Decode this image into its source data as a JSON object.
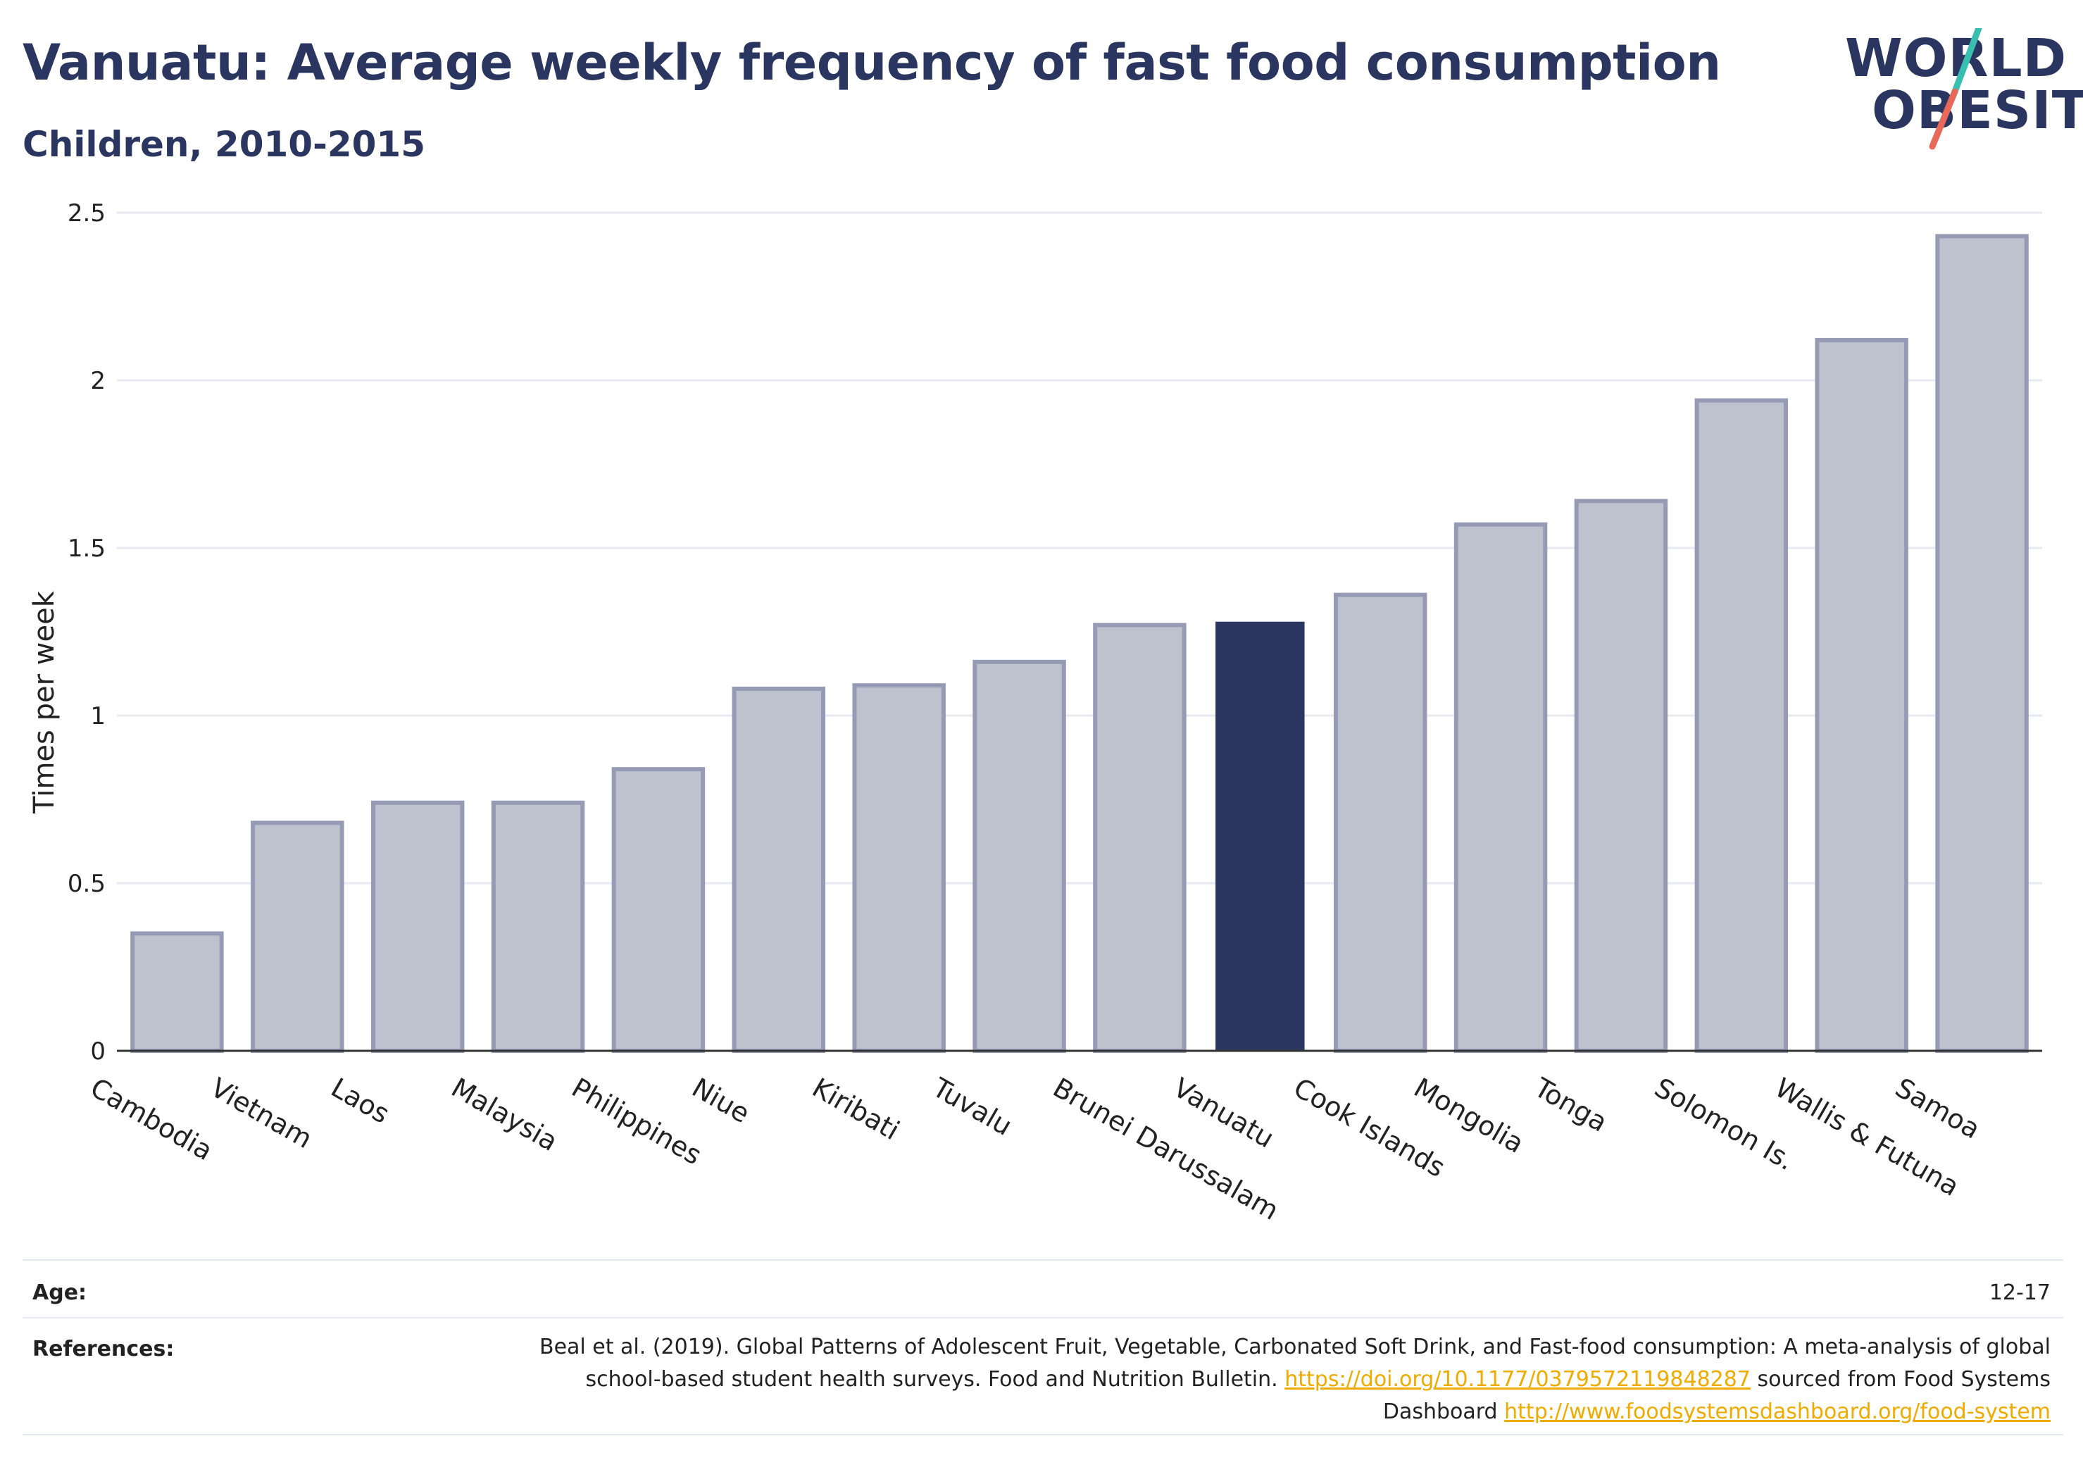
{
  "title": "Vanuatu: Average weekly frequency of fast food consumption",
  "subtitle": "Children, 2010-2015",
  "logo": {
    "line1": "WORLD",
    "line2": "OBESITY",
    "slash_colors": [
      "#38bfb0",
      "#e8695a"
    ]
  },
  "colors": {
    "highlight": "#2a3560",
    "bar_fill": "#bec2cf",
    "bar_stroke": "#959bb4",
    "grid": "#e9eaf1",
    "link": "#f0ab00"
  },
  "chart_data": {
    "type": "bar",
    "title": "",
    "xlabel": "",
    "ylabel": "Times per week",
    "ylim": [
      0,
      2.5
    ],
    "yticks": [
      0,
      0.5,
      1,
      1.5,
      2,
      2.5
    ],
    "ytick_labels": [
      "0",
      "0.5",
      "1",
      "1.5",
      "2",
      "2.5"
    ],
    "grid": true,
    "highlight": "Vanuatu",
    "categories": [
      "Cambodia",
      "Vietnam",
      "Laos",
      "Malaysia",
      "Philippines",
      "Niue",
      "Kiribati",
      "Tuvalu",
      "Brunei Darussalam",
      "Vanuatu",
      "Cook Islands",
      "Mongolia",
      "Tonga",
      "Solomon Is.",
      "Wallis & Futuna",
      "Samoa"
    ],
    "values": [
      0.35,
      0.68,
      0.74,
      0.74,
      0.84,
      1.08,
      1.09,
      1.16,
      1.27,
      1.28,
      1.36,
      1.57,
      1.64,
      1.94,
      2.12,
      2.43
    ]
  },
  "meta": {
    "age_label": "Age:",
    "age_value": "12-17",
    "references_label": "References:",
    "ref_text_1": "Beal et al. (2019). Global Patterns of Adolescent Fruit, Vegetable, Carbonated Soft Drink, and Fast-food consumption: A meta-analysis of global school-based student health surveys. Food and Nutrition Bulletin.",
    "ref_link_1": "https://doi.org/10.1177/0379572119848287",
    "ref_text_2": "sourced from Food Systems Dashboard",
    "ref_link_2": "http://www.foodsystemsdashboard.org/food-system"
  }
}
